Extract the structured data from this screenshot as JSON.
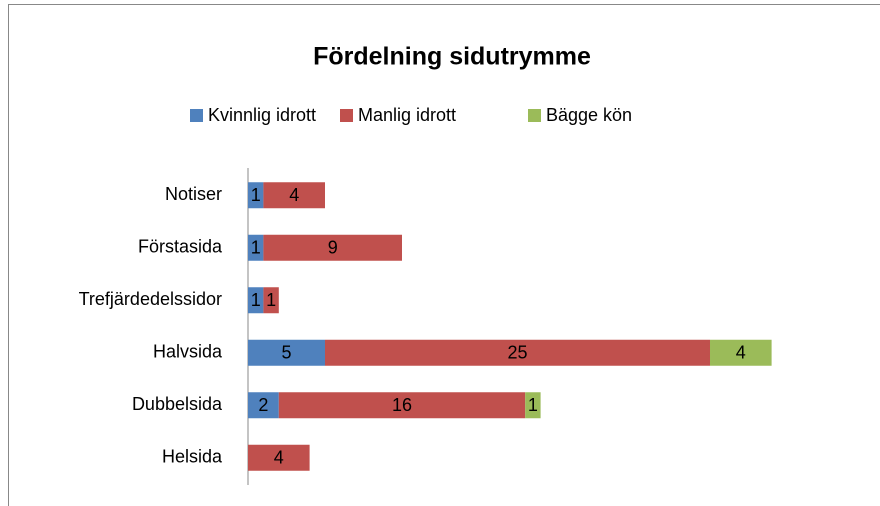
{
  "chart_data": {
    "type": "stacked_barh",
    "title": "Fördelning sidutrymme",
    "categories": [
      "Notiser",
      "Förstasida",
      "Trefjärdedelssidor",
      "Halvsida",
      "Dubbelsida",
      "Helsida"
    ],
    "series": [
      {
        "name": "Kvinnlig idrott",
        "color": "#4f81bd",
        "values": [
          1,
          1,
          1,
          5,
          2,
          null
        ]
      },
      {
        "name": "Manlig idrott",
        "color": "#c0504d",
        "values": [
          4,
          9,
          1,
          25,
          16,
          4
        ]
      },
      {
        "name": "Bägge kön",
        "color": "#9bbb59",
        "values": [
          null,
          null,
          null,
          4,
          1,
          null
        ]
      }
    ],
    "xlim": [
      0,
      40
    ]
  }
}
